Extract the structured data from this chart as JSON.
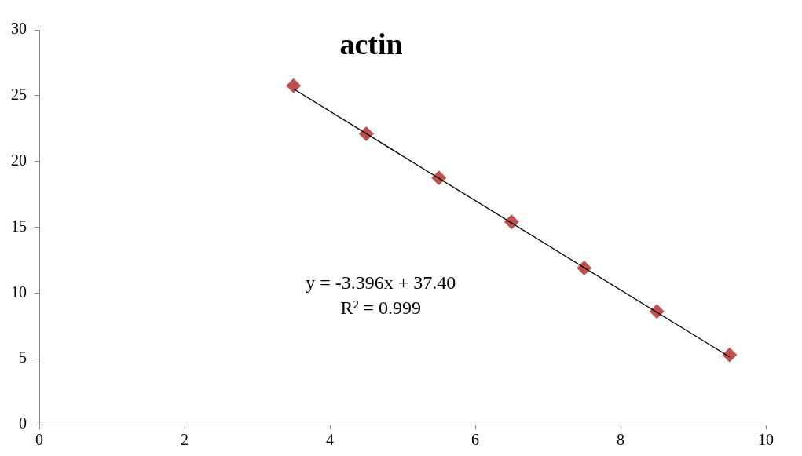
{
  "chart_data": {
    "type": "scatter",
    "title": "actin",
    "xlim": [
      0,
      10
    ],
    "xticks": [
      0,
      2,
      4,
      6,
      8,
      10
    ],
    "ylim": [
      0,
      30
    ],
    "yticks": [
      0,
      5,
      10,
      15,
      20,
      25,
      30
    ],
    "marker": "diamond",
    "legend": false,
    "annotations": [
      "y = -3.396x + 37.40",
      "R² = 0.999"
    ],
    "x": [
      3.5,
      4.5,
      5.5,
      6.5,
      7.5,
      8.5,
      9.5
    ],
    "series": [
      {
        "type": "scatter",
        "color": "#c0504d",
        "values": [
          25.75,
          22.1,
          18.75,
          15.4,
          11.9,
          8.6,
          5.3
        ]
      },
      {
        "type": "line",
        "color": "#000000",
        "x": [
          3.5,
          9.5
        ],
        "values": [
          25.51,
          5.14
        ],
        "marker": "none"
      }
    ]
  }
}
